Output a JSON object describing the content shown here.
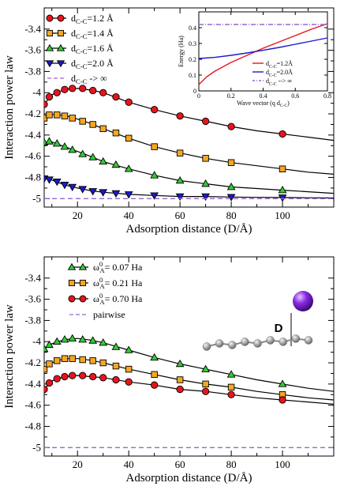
{
  "chart_data": [
    {
      "type": "line",
      "xlabel": "Adsorption distance (D/Å)",
      "ylabel": "Interaction power law",
      "xlim": [
        7,
        120
      ],
      "ylim": [
        -5.08,
        -3.2
      ],
      "xticks": [
        "20",
        "40",
        "60",
        "80",
        "100"
      ],
      "yticks": [
        "-3.4",
        "-3.6",
        "-3.8",
        "-4",
        "-4.2",
        "-4.4",
        "-4.6",
        "-4.8",
        "-5"
      ],
      "legend_position": "top-left",
      "series": [
        {
          "name": "d_C-C=1.2 Å",
          "label_main": "d",
          "label_sub": "C-C",
          "label_tail": "=1.2 Å",
          "marker": "circle",
          "color": "#e8141c",
          "x": [
            7,
            9,
            12,
            15,
            18,
            22,
            26,
            30,
            35,
            40,
            50,
            60,
            70,
            80,
            100
          ],
          "y": [
            -4.11,
            -4.04,
            -4.0,
            -3.97,
            -3.96,
            -3.96,
            -3.98,
            -4.0,
            -4.04,
            -4.09,
            -4.16,
            -4.22,
            -4.27,
            -4.32,
            -4.39
          ],
          "curve_x": [
            7,
            10,
            15,
            20,
            25,
            30,
            40,
            50,
            60,
            70,
            80,
            90,
            100,
            110,
            120
          ],
          "curve_y": [
            -4.11,
            -4.02,
            -3.97,
            -3.96,
            -3.975,
            -4.0,
            -4.09,
            -4.16,
            -4.22,
            -4.27,
            -4.32,
            -4.36,
            -4.39,
            -4.42,
            -4.45
          ]
        },
        {
          "name": "d_C-C=1.4 Å",
          "label_main": "d",
          "label_sub": "C-C",
          "label_tail": "=1.4 Å",
          "marker": "square",
          "color": "#f5a623",
          "x": [
            7,
            9,
            12,
            15,
            18,
            22,
            26,
            30,
            35,
            40,
            50,
            60,
            70,
            80,
            100
          ],
          "y": [
            -4.24,
            -4.21,
            -4.21,
            -4.22,
            -4.24,
            -4.27,
            -4.3,
            -4.34,
            -4.38,
            -4.43,
            -4.51,
            -4.57,
            -4.62,
            -4.66,
            -4.72
          ],
          "curve_x": [
            7,
            10,
            15,
            20,
            25,
            30,
            40,
            50,
            60,
            70,
            80,
            90,
            100,
            110,
            120
          ],
          "curve_y": [
            -4.24,
            -4.205,
            -4.215,
            -4.25,
            -4.29,
            -4.34,
            -4.43,
            -4.51,
            -4.57,
            -4.62,
            -4.66,
            -4.69,
            -4.72,
            -4.75,
            -4.77
          ]
        },
        {
          "name": "d_C-C=1.6 Å",
          "label_main": "d",
          "label_sub": "C-C",
          "label_tail": "=1.6 Å",
          "marker": "triangle-up",
          "color": "#33cc33",
          "x": [
            7,
            9,
            12,
            15,
            18,
            22,
            26,
            30,
            35,
            40,
            50,
            60,
            70,
            80,
            100
          ],
          "y": [
            -4.47,
            -4.46,
            -4.48,
            -4.51,
            -4.54,
            -4.58,
            -4.61,
            -4.65,
            -4.68,
            -4.72,
            -4.78,
            -4.83,
            -4.86,
            -4.89,
            -4.92
          ],
          "curve_x": [
            7,
            10,
            15,
            20,
            25,
            30,
            40,
            50,
            60,
            70,
            80,
            90,
            100,
            110,
            120
          ],
          "curve_y": [
            -4.47,
            -4.465,
            -4.51,
            -4.555,
            -4.6,
            -4.65,
            -4.72,
            -4.78,
            -4.83,
            -4.86,
            -4.89,
            -4.905,
            -4.92,
            -4.935,
            -4.95
          ]
        },
        {
          "name": "d_C-C=2.0 Å",
          "label_main": "d",
          "label_sub": "C-C",
          "label_tail": "=2.0 Å",
          "marker": "triangle-down",
          "color": "#1a1acc",
          "x": [
            7,
            9,
            12,
            15,
            18,
            22,
            26,
            30,
            35,
            40,
            50,
            60,
            70,
            80,
            100
          ],
          "y": [
            -4.81,
            -4.82,
            -4.84,
            -4.87,
            -4.89,
            -4.91,
            -4.93,
            -4.94,
            -4.95,
            -4.96,
            -4.97,
            -4.98,
            -4.98,
            -4.985,
            -4.99
          ],
          "curve_x": [
            7,
            10,
            15,
            20,
            25,
            30,
            40,
            50,
            60,
            70,
            80,
            90,
            100,
            110,
            120
          ],
          "curve_y": [
            -4.81,
            -4.825,
            -4.87,
            -4.9,
            -4.925,
            -4.94,
            -4.96,
            -4.97,
            -4.98,
            -4.98,
            -4.985,
            -4.988,
            -4.99,
            -4.992,
            -4.994
          ]
        },
        {
          "name": "d_C-C -> ∞",
          "label_main": "d",
          "label_sub": "C-C",
          "label_tail": " -> ∞",
          "marker": "none",
          "line_style": "dashed",
          "color": "#9966cc",
          "x": [
            7,
            120
          ],
          "y": [
            -5.0,
            -5.0
          ]
        }
      ],
      "inset": {
        "type": "line",
        "xlabel": "Wave vector (q d",
        "xlabel_sub": "C-C",
        "xlabel_tail": ")",
        "ylabel": "Energy (Ha)",
        "xlim": [
          0,
          0.8
        ],
        "ylim": [
          0,
          0.5
        ],
        "xticks": [
          "0",
          "0.2",
          "0.4",
          "0.6",
          "0.8"
        ],
        "yticks": [
          "0",
          "0.1",
          "0.2",
          "0.3",
          "0.4"
        ],
        "series": [
          {
            "name": "d_C-C=1.2Å",
            "label_main": "d",
            "label_sub": "C-C",
            "label_tail": "=1.2Å",
            "color": "#e8141c",
            "x": [
              0,
              0.05,
              0.1,
              0.2,
              0.3,
              0.4,
              0.5,
              0.6,
              0.7,
              0.8
            ],
            "y": [
              0.04,
              0.09,
              0.125,
              0.18,
              0.225,
              0.27,
              0.31,
              0.35,
              0.39,
              0.425
            ]
          },
          {
            "name": "d_C-C=2.0Å",
            "label_main": "d",
            "label_sub": "C-C",
            "label_tail": "=2.0Å",
            "color": "#1a1acc",
            "x": [
              0,
              0.1,
              0.2,
              0.3,
              0.4,
              0.5,
              0.6,
              0.7,
              0.8
            ],
            "y": [
              0.205,
              0.212,
              0.225,
              0.24,
              0.257,
              0.275,
              0.295,
              0.315,
              0.335
            ]
          },
          {
            "name": "d_C-C --> ∞",
            "label_main": "d",
            "label_sub": "C-C",
            "label_tail": " --> ∞",
            "color": "#9966cc",
            "line_style": "dashdot",
            "x": [
              0,
              0.8
            ],
            "y": [
              0.42,
              0.42
            ]
          }
        ]
      }
    },
    {
      "type": "line",
      "xlabel": "Adsorption distance (D/Å)",
      "ylabel": "Interaction power law",
      "xlim": [
        7,
        120
      ],
      "ylim": [
        -5.08,
        -3.2
      ],
      "xticks": [
        "20",
        "40",
        "60",
        "80",
        "100"
      ],
      "yticks": [
        "-3.4",
        "-3.6",
        "-3.8",
        "-4",
        "-4.2",
        "-4.4",
        "-4.6",
        "-4.8",
        "-5"
      ],
      "legend_position": "top-left",
      "series": [
        {
          "name": "ω_A^0= 0.07 Ha",
          "label_main": "ω",
          "label_sub": "A",
          "label_sup": "0",
          "label_tail": "= 0.07 Ha",
          "marker": "triangle-up",
          "color": "#33cc33",
          "x": [
            7,
            9,
            12,
            15,
            18,
            22,
            26,
            30,
            35,
            40,
            50,
            60,
            70,
            80,
            100
          ],
          "y": [
            -4.07,
            -4.03,
            -4.0,
            -3.98,
            -3.97,
            -3.98,
            -3.99,
            -4.01,
            -4.05,
            -4.08,
            -4.15,
            -4.21,
            -4.26,
            -4.31,
            -4.4
          ],
          "curve_x": [
            7,
            10,
            15,
            20,
            25,
            30,
            40,
            50,
            60,
            70,
            80,
            90,
            100,
            110,
            120
          ],
          "curve_y": [
            -4.07,
            -4.02,
            -3.98,
            -3.97,
            -3.985,
            -4.01,
            -4.08,
            -4.15,
            -4.21,
            -4.26,
            -4.31,
            -4.36,
            -4.4,
            -4.44,
            -4.47
          ]
        },
        {
          "name": "ω_A^0= 0.21 Ha",
          "label_main": "ω",
          "label_sub": "A",
          "label_sup": "0",
          "label_tail": "= 0.21 Ha",
          "marker": "square",
          "color": "#f5a623",
          "x": [
            7,
            9,
            12,
            15,
            18,
            22,
            26,
            30,
            35,
            40,
            50,
            60,
            70,
            80,
            100
          ],
          "y": [
            -4.26,
            -4.21,
            -4.18,
            -4.16,
            -4.16,
            -4.17,
            -4.18,
            -4.2,
            -4.23,
            -4.26,
            -4.31,
            -4.36,
            -4.4,
            -4.43,
            -4.5
          ],
          "curve_x": [
            7,
            10,
            15,
            20,
            25,
            30,
            40,
            50,
            60,
            70,
            80,
            90,
            100,
            110,
            120
          ],
          "curve_y": [
            -4.26,
            -4.2,
            -4.16,
            -4.16,
            -4.175,
            -4.2,
            -4.26,
            -4.31,
            -4.36,
            -4.4,
            -4.43,
            -4.47,
            -4.5,
            -4.53,
            -4.55
          ]
        },
        {
          "name": "ω_A^0= 0.70 Ha",
          "label_main": "ω",
          "label_sub": "A",
          "label_sup": "0",
          "label_tail": "= 0.70 Ha",
          "marker": "circle",
          "color": "#e8141c",
          "x": [
            7,
            9,
            12,
            15,
            18,
            22,
            26,
            30,
            35,
            40,
            50,
            60,
            70,
            80,
            100
          ],
          "y": [
            -4.45,
            -4.39,
            -4.35,
            -4.33,
            -4.32,
            -4.32,
            -4.33,
            -4.34,
            -4.36,
            -4.38,
            -4.41,
            -4.45,
            -4.47,
            -4.5,
            -4.55
          ],
          "curve_x": [
            7,
            10,
            15,
            20,
            25,
            30,
            40,
            50,
            60,
            70,
            80,
            90,
            100,
            110,
            120
          ],
          "curve_y": [
            -4.45,
            -4.37,
            -4.33,
            -4.32,
            -4.33,
            -4.34,
            -4.38,
            -4.41,
            -4.45,
            -4.47,
            -4.5,
            -4.53,
            -4.55,
            -4.57,
            -4.59
          ]
        },
        {
          "name": "pairwise",
          "label_main": "pairwise",
          "marker": "none",
          "line_style": "dashed",
          "color": "#9966cc",
          "x": [
            7,
            120
          ],
          "y": [
            -5.0,
            -5.0
          ]
        }
      ],
      "annotation": {
        "label": "D"
      }
    }
  ]
}
